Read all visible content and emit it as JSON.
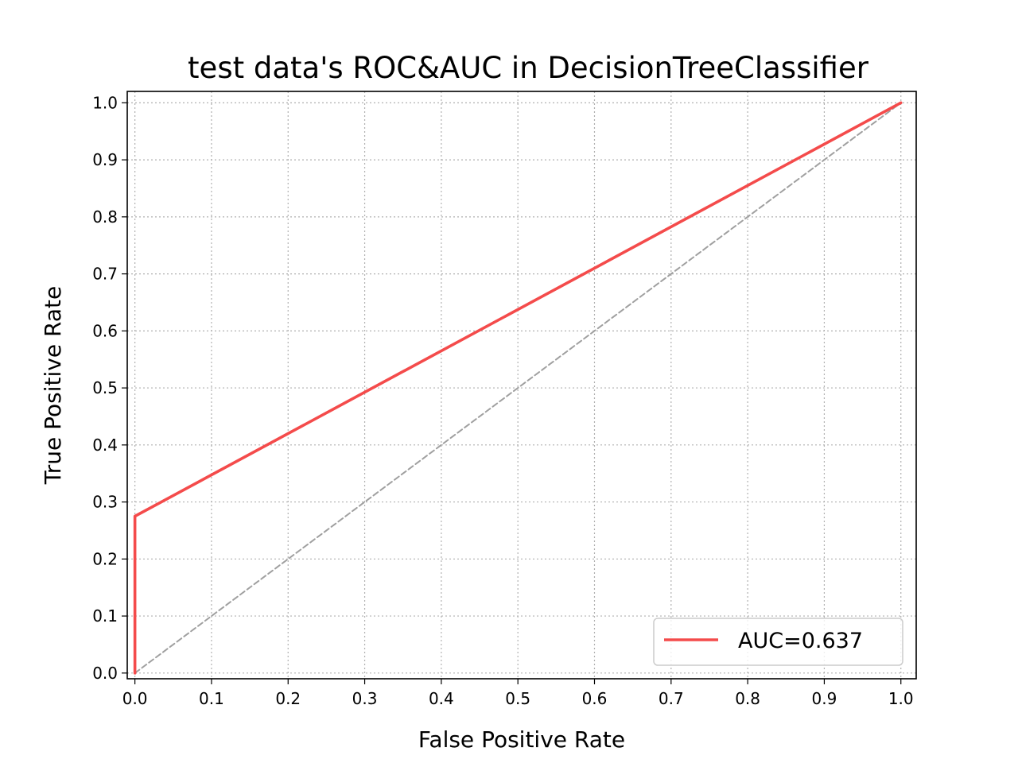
{
  "chart_data": {
    "type": "line",
    "title": "test data's ROC&AUC in DecisionTreeClassifier",
    "xlabel": "False Positive Rate",
    "ylabel": "True Positive Rate",
    "xlim": [
      -0.01,
      1.02
    ],
    "ylim": [
      -0.01,
      1.02
    ],
    "xticks": [
      0.0,
      0.1,
      0.2,
      0.3,
      0.4,
      0.5,
      0.6,
      0.7,
      0.8,
      0.9,
      1.0
    ],
    "xtick_labels": [
      "0.0",
      "0.1",
      "0.2",
      "0.3",
      "0.4",
      "0.5",
      "0.6",
      "0.7",
      "0.8",
      "0.9",
      "1.0"
    ],
    "yticks": [
      0.0,
      0.1,
      0.2,
      0.3,
      0.4,
      0.5,
      0.6,
      0.7,
      0.8,
      0.9,
      1.0
    ],
    "ytick_labels": [
      "0.0",
      "0.1",
      "0.2",
      "0.3",
      "0.4",
      "0.5",
      "0.6",
      "0.7",
      "0.8",
      "0.9",
      "1.0"
    ],
    "grid": true,
    "legend_position": "lower-right",
    "series": [
      {
        "name": "AUC=0.637",
        "color": "#f44b4b",
        "style": "solid",
        "x": [
          0.0,
          0.0,
          1.0
        ],
        "y": [
          0.0,
          0.275,
          1.0
        ]
      },
      {
        "color": "#a0a0a0",
        "style": "dashed",
        "x": [
          0.0,
          1.0
        ],
        "y": [
          0.0,
          1.0
        ]
      }
    ]
  }
}
